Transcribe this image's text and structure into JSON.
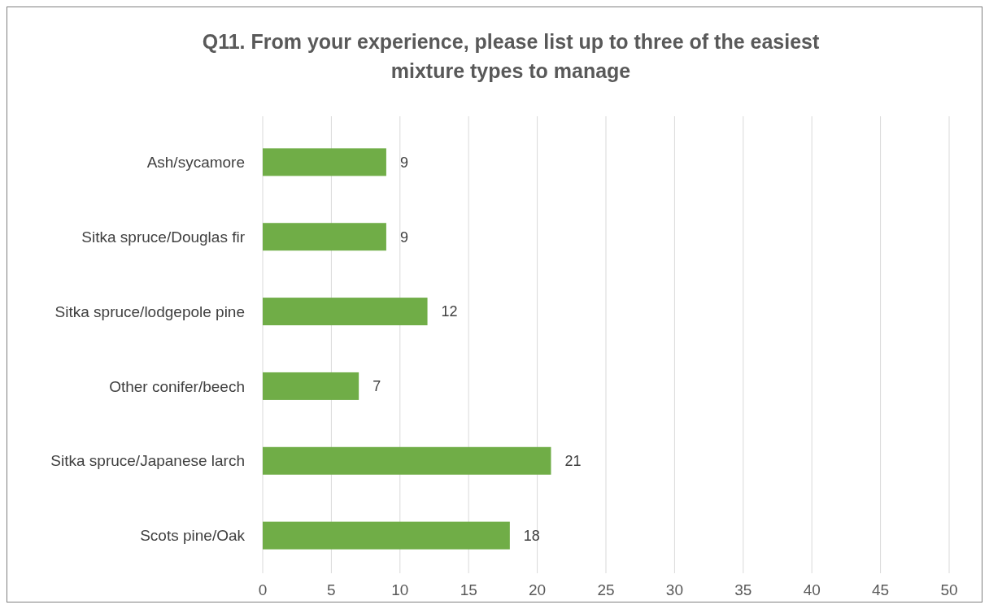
{
  "chart_data": {
    "type": "bar",
    "orientation": "horizontal",
    "title": "Q11. From your experience, please list up to three of the easiest mixture types to manage",
    "categories": [
      "Ash/sycamore",
      "Sitka spruce/Douglas fir",
      "Sitka spruce/lodgepole pine",
      "Other conifer/beech",
      "Sitka spruce/Japanese larch",
      "Scots pine/Oak"
    ],
    "values": [
      9,
      9,
      12,
      7,
      21,
      18
    ],
    "color": "#70ad47",
    "xlim": [
      0,
      50
    ],
    "xticks": [
      0,
      5,
      10,
      15,
      20,
      25,
      30,
      35,
      40,
      45,
      50
    ],
    "grid": "x",
    "data_labels": true
  }
}
